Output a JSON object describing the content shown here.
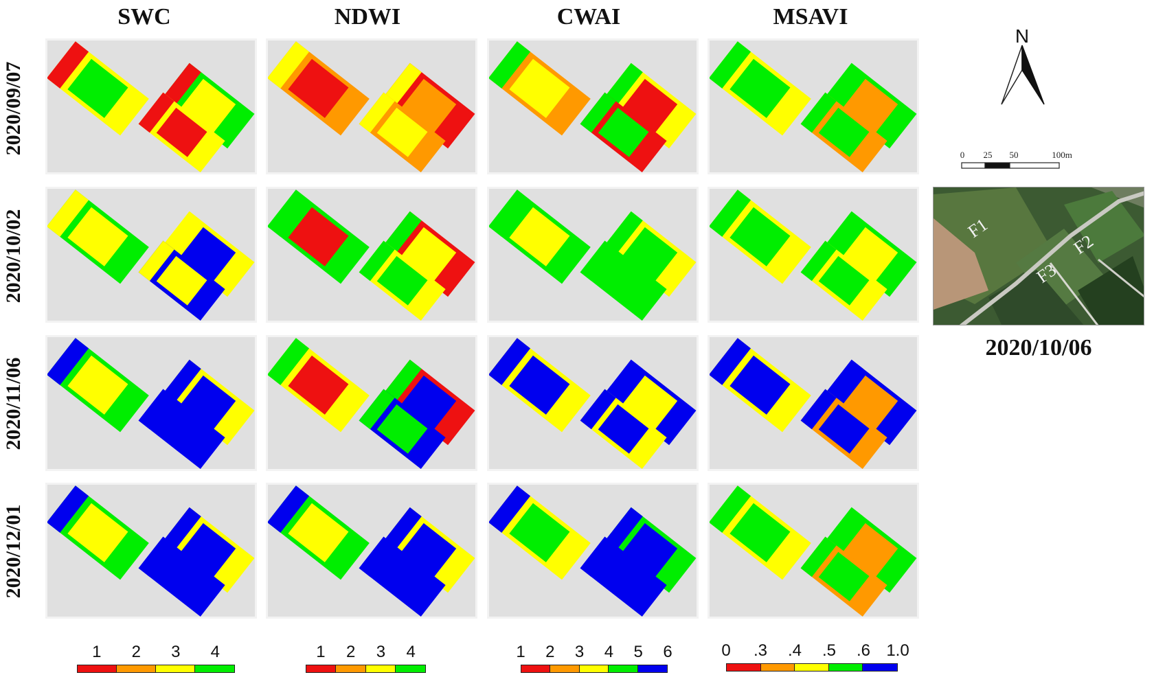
{
  "columns": [
    "SWC",
    "NDWI",
    "CWAI",
    "MSAVI"
  ],
  "rows": [
    "2020/09/07",
    "2020/10/02",
    "2020/11/06",
    "2020/12/01"
  ],
  "palette": {
    "red": "#ee1111",
    "orange": "#ff9900",
    "yellow": "#ffff00",
    "green": "#00ee00",
    "blue": "#0000ee",
    "panel_bg": "#e0e0e0"
  },
  "legends": [
    {
      "labels": [
        "1",
        "2",
        "3",
        "4"
      ],
      "colors": [
        "#ee1111",
        "#ff9900",
        "#ffff00",
        "#00ee00"
      ]
    },
    {
      "labels": [
        "1",
        "2",
        "3",
        "4"
      ],
      "colors": [
        "#ee1111",
        "#ff9900",
        "#ffff00",
        "#00ee00"
      ]
    },
    {
      "labels": [
        "1",
        "2",
        "3",
        "4",
        "5",
        "6"
      ],
      "colors": [
        "#ee1111",
        "#ff9900",
        "#ffff00",
        "#00ee00",
        "#0000ee"
      ]
    },
    {
      "labels": [
        "0",
        ".3",
        ".4",
        ".5",
        ".6",
        "1.0"
      ],
      "colors": [
        "#ee1111",
        "#ff9900",
        "#ffff00",
        "#00ee00",
        "#0000ee"
      ]
    }
  ],
  "north_arrow": {
    "label": "N"
  },
  "scale_bar": {
    "ticks": [
      "0",
      "25",
      "50",
      "100m"
    ]
  },
  "photo": {
    "field_labels": [
      "F1",
      "F2",
      "F3"
    ],
    "date": "2020/10/06"
  },
  "panel_colors": [
    [
      [
        "red",
        "yellow",
        "green",
        "yellow"
      ],
      [
        "yellow",
        "green",
        "yellow",
        "blue"
      ],
      [
        "blue",
        "green",
        "yellow",
        "blue"
      ],
      [
        "blue",
        "green",
        "yellow",
        "blue"
      ]
    ],
    [
      [
        "yellow",
        "orange",
        "red",
        "orange"
      ],
      [
        "green",
        "green",
        "red",
        "yellow"
      ],
      [
        "green",
        "yellow",
        "red",
        "blue"
      ],
      [
        "blue",
        "green",
        "yellow",
        "blue"
      ]
    ],
    [
      [
        "green",
        "orange",
        "yellow",
        "red"
      ],
      [
        "green",
        "green",
        "yellow",
        "green"
      ],
      [
        "blue",
        "yellow",
        "blue",
        "yellow"
      ],
      [
        "blue",
        "yellow",
        "green",
        "blue"
      ]
    ],
    [
      [
        "green",
        "yellow",
        "green",
        "orange"
      ],
      [
        "green",
        "yellow",
        "green",
        "yellow"
      ],
      [
        "blue",
        "yellow",
        "blue",
        "orange"
      ],
      [
        "green",
        "yellow",
        "green",
        "orange"
      ]
    ]
  ]
}
